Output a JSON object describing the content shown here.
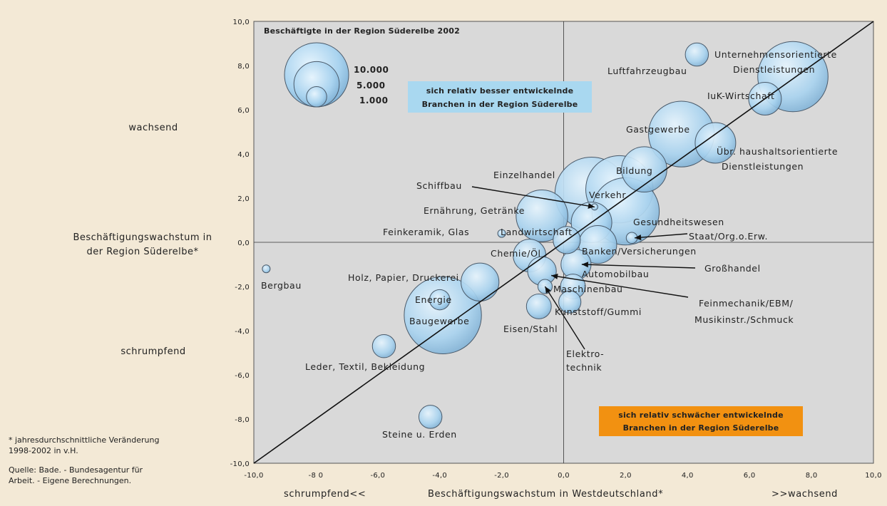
{
  "left_labels": {
    "top": "wachsend",
    "axis_line1": "Beschäftigungswachstum in",
    "axis_line2": "der Region Süderelbe*",
    "bottom": "schrumpfend"
  },
  "bottom_labels": {
    "left": "schrumpfend<<",
    "center": "Beschäftigungswachstum in Westdeutschland*",
    "right": ">>wachsend"
  },
  "footnote": {
    "line1": "* jahresdurchschnittliche Veränderung",
    "line2": "1998-2002 in v.H.",
    "line3": "Quelle: Bade. - Bundesagentur für",
    "line4": "Arbeit. - Eigene Berechnungen."
  },
  "colors": {
    "background": "#f3e9d6",
    "plot_bg": "#d9d9d9",
    "bubble": "#a9d3ef",
    "bubble_stroke": "#4a5a6a",
    "upper_box": "#a9d8f0",
    "lower_box": "#f29111"
  },
  "chart_data": {
    "type": "scatter",
    "title": "Beschäftigte in der Region Süderelbe 2002",
    "xlabel": "Beschäftigungswachstum in Westdeutschland*",
    "ylabel": "Beschäftigungswachstum in der Region Süderelbe*",
    "xlim": [
      -10,
      10
    ],
    "ylim": [
      -10,
      10
    ],
    "x_ticks": [
      "-10,0",
      "-8 0",
      "-6,0",
      "-4,0",
      "-2,0",
      "0,0",
      "2,0",
      "4,0",
      "6,0",
      "8,0",
      "10,0"
    ],
    "y_ticks": [
      "-10,0",
      "-8,0",
      "-6,0",
      "-4,0",
      "-2,0",
      "0,0",
      "2,0",
      "4,0",
      "6,0",
      "8,0",
      "10,0"
    ],
    "diagonal": true,
    "size_legend": [
      {
        "label": "10.000",
        "value": 10000
      },
      {
        "label": "5.000",
        "value": 5000
      },
      {
        "label": "1.000",
        "value": 1000
      }
    ],
    "quadrant_labels": [
      {
        "line1": "sich relativ besser entwickelnde",
        "line2": "Branchen in der Region Süderelbe"
      },
      {
        "line1": "sich relativ schwächer entwickelnde",
        "line2": "Branchen in der Region Süderelbe"
      }
    ],
    "points": [
      {
        "label": "Unternehmensorientierte Dienstleistungen",
        "x": 7.4,
        "y": 7.5,
        "size": 12000
      },
      {
        "label": "Luftfahrzeugbau",
        "x": 4.3,
        "y": 8.5,
        "size": 1300
      },
      {
        "label": "IuK-Wirtschaft",
        "x": 6.5,
        "y": 6.5,
        "size": 2600
      },
      {
        "label": "Gastgewerbe",
        "x": 3.8,
        "y": 4.9,
        "size": 10500
      },
      {
        "label": "Übr. haushaltsorientierte Dienstleistungen",
        "x": 4.9,
        "y": 4.5,
        "size": 4000
      },
      {
        "label": "Bildung",
        "x": 2.6,
        "y": 3.3,
        "size": 5000
      },
      {
        "label": "Einzelhandel",
        "x": 0.9,
        "y": 2.2,
        "size": 13000
      },
      {
        "label": "Verkehr",
        "x": 1.8,
        "y": 2.4,
        "size": 11000
      },
      {
        "label": "Gesundheitswesen",
        "x": 2.0,
        "y": 1.4,
        "size": 11000
      },
      {
        "label": "Schiffbau",
        "x": 1.0,
        "y": 1.6,
        "size": 100
      },
      {
        "label": "Ernährung, Getränke",
        "x": -0.7,
        "y": 1.2,
        "size": 6500
      },
      {
        "label": "Feinkeramik, Glas",
        "x": -2.0,
        "y": 0.4,
        "size": 150
      },
      {
        "label": "Landwirtschaft",
        "x": 0.9,
        "y": 0.9,
        "size": 4000
      },
      {
        "label": "Staat/Org.o.Erw.",
        "x": 2.2,
        "y": 0.2,
        "size": 300
      },
      {
        "label": "Banken/Versicherungen",
        "x": 1.1,
        "y": -0.1,
        "size": 3500
      },
      {
        "label": "Chemie/Öl",
        "x": -1.1,
        "y": -0.6,
        "size": 2600
      },
      {
        "label": "Großhandel",
        "x": 0.4,
        "y": -1.0,
        "size": 2200
      },
      {
        "label": "Automobilbau",
        "x": 0.1,
        "y": 0.1,
        "size": 1800
      },
      {
        "label": "Maschinenbau",
        "x": -0.7,
        "y": -1.3,
        "size": 2000
      },
      {
        "label": "Feinmechanik/EBM/Musikinstr./Schmuck",
        "x": 0.3,
        "y": -2.0,
        "size": 1500
      },
      {
        "label": "Kunststoff/Gummi",
        "x": 0.2,
        "y": -2.7,
        "size": 1200
      },
      {
        "label": "Eisen/Stahl",
        "x": -0.8,
        "y": -2.9,
        "size": 1500
      },
      {
        "label": "Elektrotechnik",
        "x": -0.6,
        "y": -2.0,
        "size": 500
      },
      {
        "label": "Holz, Papier, Druckerei",
        "x": -2.7,
        "y": -1.8,
        "size": 3500
      },
      {
        "label": "Energie",
        "x": -4.0,
        "y": -2.6,
        "size": 1000
      },
      {
        "label": "Baugewerbe",
        "x": -3.9,
        "y": -3.3,
        "size": 14500
      },
      {
        "label": "Bergbau",
        "x": -9.6,
        "y": -1.2,
        "size": 150
      },
      {
        "label": "Leder, Textil, Bekleidung",
        "x": -5.8,
        "y": -4.7,
        "size": 1300
      },
      {
        "label": "Steine u. Erden",
        "x": -4.3,
        "y": -7.9,
        "size": 1300
      }
    ]
  }
}
